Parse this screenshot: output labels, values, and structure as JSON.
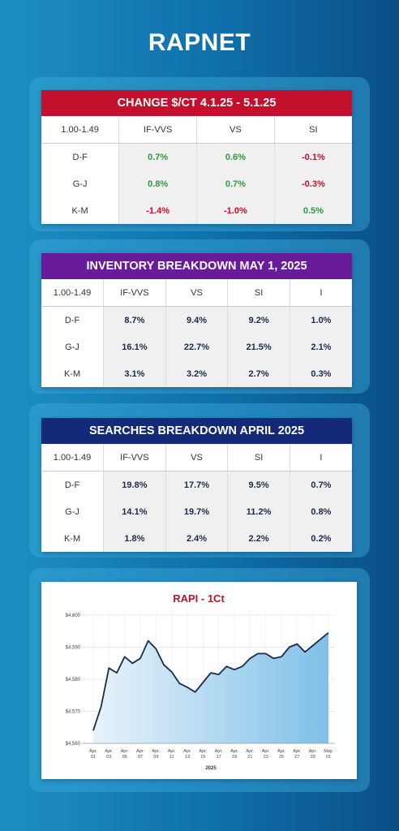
{
  "header": {
    "logo": "RAPNET"
  },
  "tables": [
    {
      "title": "CHANGE  $/CT 4.1.25 - 5.1.25",
      "color": "#c4102c",
      "header": [
        "1.00-1.49",
        "IF-VVS",
        "VS",
        "SI"
      ],
      "rows": [
        [
          "D-F",
          "0.7%",
          "0.6%",
          "-0.1%"
        ],
        [
          "G-J",
          "0.8%",
          "0.7%",
          "-0.3%"
        ],
        [
          "K-M",
          "-1.4%",
          "-1.0%",
          "0.5%"
        ]
      ]
    },
    {
      "title": "INVENTORY BREAKDOWN MAY 1, 2025",
      "color": "#6a1b9a",
      "header": [
        "1.00-1.49",
        "IF-VVS",
        "VS",
        "SI",
        "I"
      ],
      "rows": [
        [
          "D-F",
          "8.7%",
          "9.4%",
          "9.2%",
          "1.0%"
        ],
        [
          "G-J",
          "16.1%",
          "22.7%",
          "21.5%",
          "2.1%"
        ],
        [
          "K-M",
          "3.1%",
          "3.2%",
          "2.7%",
          "0.3%"
        ]
      ]
    },
    {
      "title": "SEARCHES BREAKDOWN APRIL 2025",
      "color": "#142a78",
      "header": [
        "1.00-1.49",
        "IF-VVS",
        "VS",
        "SI",
        "I"
      ],
      "rows": [
        [
          "D-F",
          "19.8%",
          "17.7%",
          "9.5%",
          "0.7%"
        ],
        [
          "G-J",
          "14.1%",
          "19.7%",
          "11.2%",
          "0.8%"
        ],
        [
          "K-M",
          "1.8%",
          "2.4%",
          "2.2%",
          "0.2%"
        ]
      ]
    }
  ],
  "chart_data": {
    "type": "area",
    "title": "RAPI  - 1Ct",
    "x_label": "2025",
    "color": "#1b2b4b",
    "categories": [
      "Apr. 01",
      null,
      "Apr. 03",
      null,
      "Apr. 05",
      null,
      "Apr. 07",
      null,
      "Apr. 09",
      null,
      "Apr. 11",
      null,
      "Apr. 13",
      null,
      "Apr. 15",
      null,
      "Apr. 17",
      null,
      "Apr. 19",
      null,
      "Apr. 21",
      null,
      "Apr. 23",
      null,
      "Apr. 25",
      null,
      "Apr. 27",
      null,
      "Apr. 29",
      null,
      "May. 01"
    ],
    "values": [
      4564,
      4571.5,
      4583.5,
      4582,
      4587,
      4585,
      4586.5,
      4592,
      4589.5,
      4584.5,
      4582.3,
      4578.7,
      4577.5,
      4576,
      4579,
      4582,
      4581.5,
      4584,
      4583,
      4584,
      4586.5,
      4588,
      4588,
      4586.5,
      4587,
      4590,
      4591,
      4588.5,
      4590.5,
      4592.5,
      4594.5
    ],
    "ylim": [
      4560,
      4600
    ],
    "yticks": [
      {
        "value": 4560,
        "label": "$4,560"
      },
      {
        "value": 4570,
        "label": "$4,570"
      },
      {
        "value": 4580,
        "label": "$4,580"
      },
      {
        "value": 4590,
        "label": "$4,590"
      },
      {
        "value": 4600,
        "label": "$4,600"
      }
    ],
    "grid": true
  }
}
